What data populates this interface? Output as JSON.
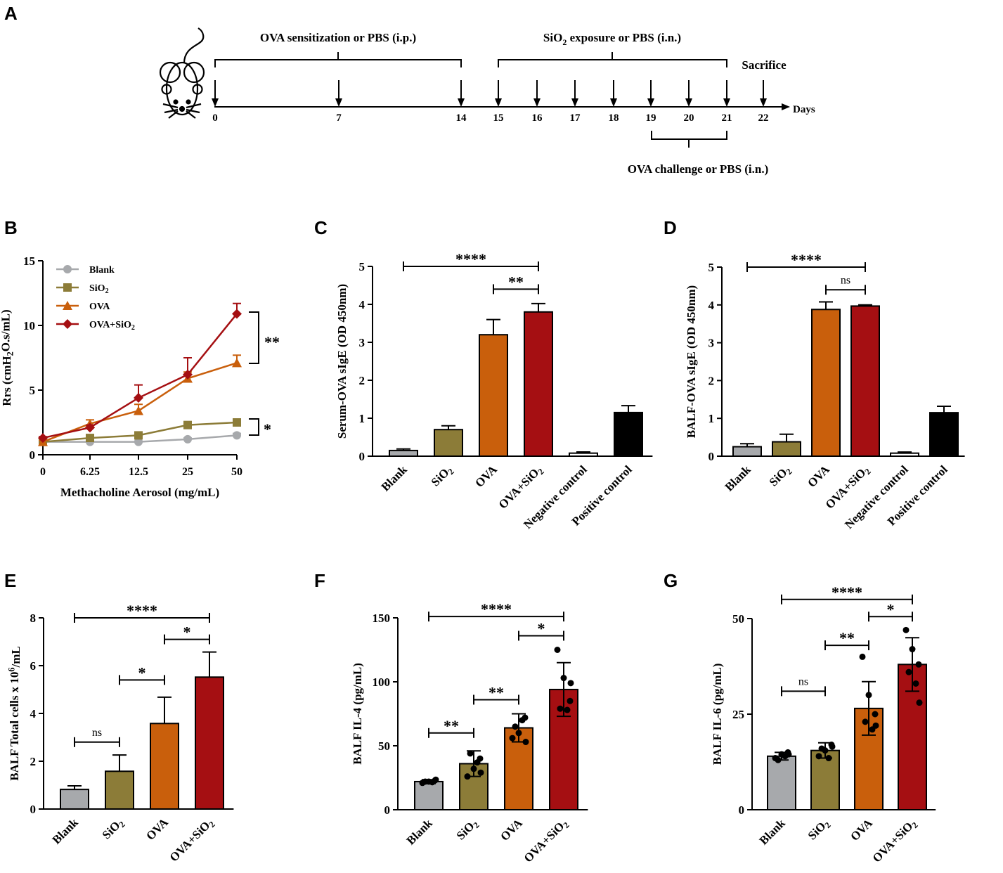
{
  "colors": {
    "blank": "#A7A9AC",
    "sio2": "#8C7C38",
    "ova": "#C95F0C",
    "ova_sio2": "#A50F12",
    "positive": "#000000",
    "negative": "#FFFFFF"
  },
  "panel_a": {
    "label": "A",
    "sensitization": "OVA sensitization or PBS (i.p.)",
    "exposure_pre": "SiO",
    "exposure_sub": "2",
    "exposure_post": " exposure or PBS (i.n.)",
    "sacrifice": "Sacrifice",
    "days_label": "Days",
    "challenge": "OVA challenge or PBS (i.n.)",
    "days": [
      "0",
      "7",
      "14",
      "15",
      "16",
      "17",
      "18",
      "19",
      "20",
      "21",
      "22"
    ]
  },
  "chart_data": [
    {
      "panel": "B",
      "type": "line",
      "x": [
        "0",
        "6.25",
        "12.5",
        "25",
        "50"
      ],
      "xlabel": "Methacholine Aerosol (mg/mL)",
      "ylabel_pre": "Rrs (cmH",
      "ylabel_sub": "2",
      "ylabel_post": "O.s/mL)",
      "ylim": [
        0,
        15
      ],
      "yticks": [
        "0",
        "5",
        "10",
        "15"
      ],
      "series": [
        {
          "name": "Blank",
          "name_sub": "",
          "marker": "circle",
          "values": [
            1.0,
            1.0,
            1.0,
            1.2,
            1.5
          ],
          "err": [
            0.05,
            0.05,
            0.05,
            0.1,
            0.15
          ]
        },
        {
          "name": "SiO",
          "name_sub": "2",
          "marker": "square",
          "values": [
            1.0,
            1.3,
            1.5,
            2.3,
            2.5
          ],
          "err": [
            0.1,
            0.15,
            0.15,
            0.25,
            0.2
          ]
        },
        {
          "name": "OVA",
          "name_sub": "",
          "marker": "triangle",
          "values": [
            1.0,
            2.4,
            3.4,
            5.9,
            7.1
          ],
          "err": [
            0.1,
            0.3,
            0.5,
            0.5,
            0.6
          ]
        },
        {
          "name": "OVA+SiO",
          "name_sub": "2",
          "marker": "diamond",
          "values": [
            1.3,
            2.1,
            4.4,
            6.2,
            10.9
          ],
          "err": [
            0.1,
            0.2,
            1.0,
            1.3,
            0.8
          ]
        }
      ],
      "sig_top": "**",
      "sig_bottom": "*"
    },
    {
      "panel": "C",
      "type": "bar",
      "ylabel": "Serum-OVA sIgE (OD 450nm)",
      "ylim": [
        0,
        5
      ],
      "yticks": [
        "0",
        "1",
        "2",
        "3",
        "4",
        "5"
      ],
      "categories": [
        {
          "name": "Blank",
          "sub": "",
          "value": 0.15,
          "err": 0.04
        },
        {
          "name": "SiO",
          "sub": "2",
          "value": 0.7,
          "err": 0.1
        },
        {
          "name": "OVA",
          "sub": "",
          "value": 3.2,
          "err": 0.4
        },
        {
          "name": "OVA+SiO",
          "sub": "2",
          "value": 3.8,
          "err": 0.22
        },
        {
          "name": "Negative control",
          "sub": "",
          "value": 0.08,
          "err": 0.03
        },
        {
          "name": "Positive control",
          "sub": "",
          "value": 1.15,
          "err": 0.18
        }
      ],
      "comparisons": [
        {
          "from": 0,
          "to": 3,
          "label": "****",
          "y": 5.0
        },
        {
          "from": 2,
          "to": 3,
          "label": "**",
          "y": 4.4
        }
      ]
    },
    {
      "panel": "D",
      "type": "bar",
      "ylabel": "BALF-OVA sIgE (OD 450nm)",
      "ylim": [
        0,
        5
      ],
      "yticks": [
        "0",
        "1",
        "2",
        "3",
        "4",
        "5"
      ],
      "categories": [
        {
          "name": "Blank",
          "sub": "",
          "value": 0.25,
          "err": 0.08
        },
        {
          "name": "SiO",
          "sub": "2",
          "value": 0.38,
          "err": 0.2
        },
        {
          "name": "OVA",
          "sub": "",
          "value": 3.88,
          "err": 0.2
        },
        {
          "name": "OVA+SiO",
          "sub": "2",
          "value": 3.97,
          "err": 0.03
        },
        {
          "name": "Negative control",
          "sub": "",
          "value": 0.08,
          "err": 0.03
        },
        {
          "name": "Positive control",
          "sub": "",
          "value": 1.15,
          "err": 0.17
        }
      ],
      "comparisons": [
        {
          "from": 0,
          "to": 3,
          "label": "****",
          "y": 5.0
        },
        {
          "from": 2,
          "to": 3,
          "label": "ns",
          "y": 4.4
        }
      ]
    },
    {
      "panel": "E",
      "type": "bar",
      "ylabel_pre": "BALF Total cells x 10",
      "ylabel_sup": "6",
      "ylabel_post": "/mL",
      "ylim": [
        0,
        8
      ],
      "yticks": [
        "0",
        "2",
        "4",
        "6",
        "8"
      ],
      "categories": [
        {
          "name": "Blank",
          "sub": "",
          "value": 0.82,
          "err": 0.15
        },
        {
          "name": "SiO",
          "sub": "2",
          "value": 1.58,
          "err": 0.68
        },
        {
          "name": "OVA",
          "sub": "",
          "value": 3.58,
          "err": 1.1
        },
        {
          "name": "OVA+SiO",
          "sub": "2",
          "value": 5.52,
          "err": 1.05
        }
      ],
      "comparisons": [
        {
          "from": 0,
          "to": 3,
          "label": "****",
          "y": 8.0
        },
        {
          "from": 2,
          "to": 3,
          "label": "*",
          "y": 7.1
        },
        {
          "from": 1,
          "to": 2,
          "label": "*",
          "y": 5.4
        },
        {
          "from": 0,
          "to": 1,
          "label": "ns",
          "y": 2.8
        }
      ]
    },
    {
      "panel": "F",
      "type": "bar",
      "ylabel": "BALF IL-4 (pg/mL)",
      "ylim": [
        0,
        150
      ],
      "yticks": [
        "0",
        "50",
        "100",
        "150"
      ],
      "categories": [
        {
          "name": "Blank",
          "sub": "",
          "value": 22,
          "err": 1.5,
          "points": [
            21,
            22,
            23,
            22,
            21.5,
            23.5
          ]
        },
        {
          "name": "SiO",
          "sub": "2",
          "value": 36,
          "err": 10,
          "points": [
            26,
            32,
            40,
            44,
            37,
            29
          ]
        },
        {
          "name": "OVA",
          "sub": "",
          "value": 64,
          "err": 11,
          "points": [
            56,
            60,
            72,
            65,
            70,
            53
          ]
        },
        {
          "name": "OVA+SiO",
          "sub": "2",
          "value": 94,
          "err": 21,
          "points": [
            125,
            103,
            85,
            79,
            78,
            99
          ]
        }
      ],
      "comparisons": [
        {
          "from": 0,
          "to": 3,
          "label": "****",
          "y": 151
        },
        {
          "from": 2,
          "to": 3,
          "label": "*",
          "y": 136
        },
        {
          "from": 1,
          "to": 2,
          "label": "**",
          "y": 86
        },
        {
          "from": 0,
          "to": 1,
          "label": "**",
          "y": 60
        }
      ]
    },
    {
      "panel": "G",
      "type": "bar",
      "ylabel": "BALF IL-6 (pg/mL)",
      "ylim": [
        0,
        50
      ],
      "yticks": [
        "0",
        "25",
        "50"
      ],
      "categories": [
        {
          "name": "Blank",
          "sub": "",
          "value": 14,
          "err": 1.0,
          "points": [
            13.5,
            14.5,
            15,
            13,
            14,
            14.5
          ]
        },
        {
          "name": "SiO",
          "sub": "2",
          "value": 15.5,
          "err": 2.0,
          "points": [
            14,
            15.5,
            17,
            16,
            13.5,
            16.5
          ]
        },
        {
          "name": "OVA",
          "sub": "",
          "value": 26.5,
          "err": 7.0,
          "points": [
            40,
            30,
            25,
            23,
            21,
            22
          ]
        },
        {
          "name": "OVA+SiO",
          "sub": "2",
          "value": 38,
          "err": 7.0,
          "points": [
            47,
            42,
            38,
            36,
            33,
            28
          ]
        }
      ],
      "comparisons": [
        {
          "from": 0,
          "to": 3,
          "label": "****",
          "y": 55
        },
        {
          "from": 2,
          "to": 3,
          "label": "*",
          "y": 50.5
        },
        {
          "from": 1,
          "to": 2,
          "label": "**",
          "y": 43
        },
        {
          "from": 0,
          "to": 1,
          "label": "ns",
          "y": 31
        }
      ]
    }
  ]
}
